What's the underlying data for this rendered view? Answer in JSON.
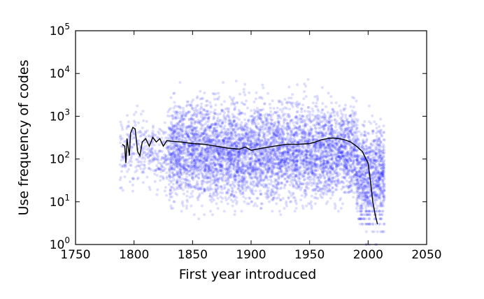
{
  "chart_data": {
    "type": "scatter",
    "xlabel": "First year introduced",
    "ylabel": "Use frequency of codes",
    "xlim": [
      1750,
      2050
    ],
    "ylim": [
      1,
      100000
    ],
    "y_scale": "log",
    "x_ticks": [
      "1750",
      "1800",
      "1850",
      "1900",
      "1950",
      "2000",
      "2050"
    ],
    "y_ticks": [
      {
        "base": "10",
        "exp": "0"
      },
      {
        "base": "10",
        "exp": "1"
      },
      {
        "base": "10",
        "exp": "2"
      },
      {
        "base": "10",
        "exp": "3"
      },
      {
        "base": "10",
        "exp": "4"
      },
      {
        "base": "10",
        "exp": "5"
      }
    ],
    "grid": false,
    "legend": "none",
    "colors": {
      "scatter": "#0000ff",
      "line": "#000000"
    },
    "scatter_density": [
      {
        "x_range": [
          1788,
          1830
        ],
        "median": 150,
        "spread_decades": 0.8
      },
      {
        "x_range": [
          1830,
          1990
        ],
        "median": 150,
        "spread_decades": 1.1
      },
      {
        "x_range": [
          1990,
          2014
        ],
        "median": 40,
        "spread_decades": 1.2
      }
    ],
    "series": [
      {
        "type": "line",
        "x": [
          1790,
          1792,
          1793,
          1794,
          1796,
          1797,
          1799,
          1801,
          1803,
          1805,
          1807,
          1810,
          1813,
          1816,
          1819,
          1822,
          1825,
          1828,
          1832,
          1840,
          1850,
          1860,
          1870,
          1880,
          1890,
          1895,
          1900,
          1910,
          1920,
          1930,
          1940,
          1950,
          1955,
          1960,
          1965,
          1970,
          1975,
          1980,
          1985,
          1990,
          1995,
          2000,
          2002,
          2004,
          2006,
          2008
        ],
        "y": [
          220,
          200,
          80,
          300,
          120,
          400,
          550,
          500,
          150,
          120,
          250,
          300,
          200,
          320,
          250,
          300,
          200,
          270,
          260,
          250,
          230,
          220,
          200,
          180,
          170,
          190,
          160,
          180,
          200,
          220,
          220,
          230,
          250,
          280,
          300,
          310,
          300,
          280,
          250,
          200,
          150,
          80,
          30,
          10,
          5,
          3
        ]
      }
    ]
  }
}
